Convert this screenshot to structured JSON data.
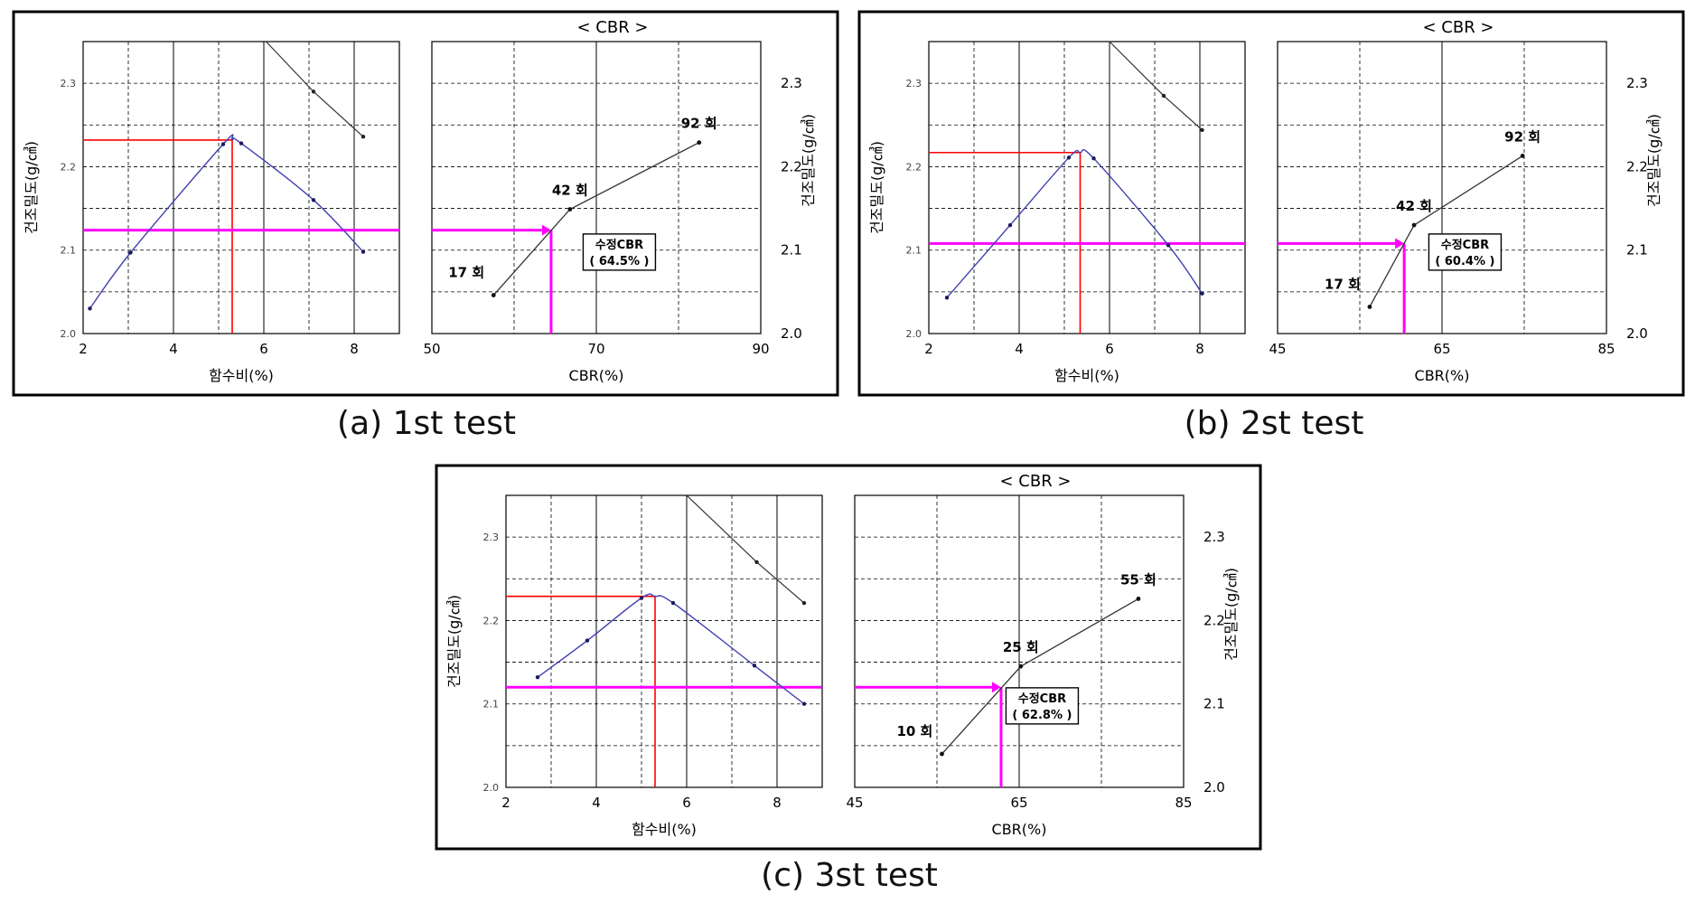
{
  "colors": {
    "compaction_curve": "#4040b0",
    "cbr_line": "#333333",
    "red_guide": "#ff0000",
    "magenta_guide": "#ff00ff",
    "grid": "#000000",
    "frame": "#000000"
  },
  "chart_data": [
    {
      "type": "line",
      "caption": "(a) 1st test",
      "title": "< CBR >",
      "compaction": {
        "xlabel": "함수비(%)",
        "ylabel": "건조밀도(g/㎤)",
        "xlim": [
          2,
          9
        ],
        "ylim": [
          2.0,
          2.35
        ],
        "xticks": [
          2,
          4,
          6,
          8
        ],
        "xtick_labels": [
          "2",
          "4",
          "6",
          "8"
        ],
        "yticks": [
          2.0,
          2.1,
          2.2,
          2.3
        ],
        "ytick_labels": [
          "2.0",
          "2.1",
          "2.2",
          "2.3"
        ],
        "curve": {
          "x": [
            2.15,
            3.05,
            5.1,
            5.5,
            7.1,
            8.2
          ],
          "y": [
            2.03,
            2.097,
            2.227,
            2.228,
            2.16,
            2.098
          ]
        },
        "zero_air_void": {
          "x": [
            6.05,
            7.1,
            8.2
          ],
          "y": [
            2.35,
            2.29,
            2.236
          ]
        },
        "omc": 5.3,
        "max_dry_density": 2.232,
        "target_density": 2.124
      },
      "cbr": {
        "xlabel": "CBR(%)",
        "ylabel": "건조밀도(g/㎤)",
        "xlim": [
          50,
          90
        ],
        "ylim": [
          2.0,
          2.35
        ],
        "xticks": [
          50,
          70,
          90
        ],
        "xtick_labels": [
          "50",
          "70",
          "90"
        ],
        "yticks": [
          2.0,
          2.1,
          2.2,
          2.3
        ],
        "ytick_labels": [
          "2.0",
          "2.1",
          "2.2",
          "2.3"
        ],
        "points": [
          {
            "x": 57.5,
            "y": 2.046,
            "label": "17 회"
          },
          {
            "x": 66.8,
            "y": 2.149,
            "label": "42 회"
          },
          {
            "x": 82.5,
            "y": 2.229,
            "label": "92 회"
          }
        ],
        "corrected_cbr": 64.5,
        "box_title": "수정CBR",
        "box_value": "( 64.5% )"
      }
    },
    {
      "type": "line",
      "caption": "(b) 2st test",
      "title": "< CBR >",
      "compaction": {
        "xlabel": "함수비(%)",
        "ylabel": "건조밀도(g/㎤)",
        "xlim": [
          2,
          9
        ],
        "ylim": [
          2.0,
          2.35
        ],
        "xticks": [
          2,
          4,
          6,
          8
        ],
        "xtick_labels": [
          "2",
          "4",
          "6",
          "8"
        ],
        "yticks": [
          2.0,
          2.1,
          2.2,
          2.3
        ],
        "ytick_labels": [
          "2.0",
          "2.1",
          "2.2",
          "2.3"
        ],
        "curve": {
          "x": [
            2.4,
            3.8,
            5.1,
            5.65,
            7.3,
            8.05
          ],
          "y": [
            2.043,
            2.13,
            2.211,
            2.21,
            2.106,
            2.048
          ]
        },
        "zero_air_void": {
          "x": [
            6.0,
            7.2,
            8.05
          ],
          "y": [
            2.35,
            2.285,
            2.244
          ]
        },
        "omc": 5.35,
        "max_dry_density": 2.217,
        "target_density": 2.108
      },
      "cbr": {
        "xlabel": "CBR(%)",
        "ylabel": "건조밀도(g/㎤)",
        "xlim": [
          45,
          85
        ],
        "ylim": [
          2.0,
          2.35
        ],
        "xticks": [
          45,
          65,
          85
        ],
        "xtick_labels": [
          "45",
          "65",
          "85"
        ],
        "yticks": [
          2.0,
          2.1,
          2.2,
          2.3
        ],
        "ytick_labels": [
          "2.0",
          "2.1",
          "2.2",
          "2.3"
        ],
        "points": [
          {
            "x": 56.2,
            "y": 2.032,
            "label": "17 회"
          },
          {
            "x": 61.6,
            "y": 2.13,
            "label": "42 회"
          },
          {
            "x": 74.8,
            "y": 2.213,
            "label": "92 회"
          }
        ],
        "corrected_cbr": 60.4,
        "box_title": "수정CBR",
        "box_value": "( 60.4% )"
      }
    },
    {
      "type": "line",
      "caption": "(c) 3st test",
      "title": "< CBR >",
      "compaction": {
        "xlabel": "함수비(%)",
        "ylabel": "건조밀도(g/㎤)",
        "xlim": [
          2,
          9
        ],
        "ylim": [
          2.0,
          2.35
        ],
        "xticks": [
          2,
          4,
          6,
          8
        ],
        "xtick_labels": [
          "2",
          "4",
          "6",
          "8"
        ],
        "yticks": [
          2.0,
          2.1,
          2.2,
          2.3
        ],
        "ytick_labels": [
          "2.0",
          "2.1",
          "2.2",
          "2.3"
        ],
        "curve": {
          "x": [
            2.7,
            3.8,
            5.0,
            5.7,
            7.5,
            8.6
          ],
          "y": [
            2.132,
            2.176,
            2.227,
            2.221,
            2.146,
            2.1
          ]
        },
        "zero_air_void": {
          "x": [
            6.0,
            7.55,
            8.6
          ],
          "y": [
            2.35,
            2.27,
            2.221
          ]
        },
        "omc": 5.3,
        "max_dry_density": 2.229,
        "target_density": 2.12
      },
      "cbr": {
        "xlabel": "CBR(%)",
        "ylabel": "건조밀도(g/㎤)",
        "xlim": [
          45,
          85
        ],
        "ylim": [
          2.0,
          2.35
        ],
        "xticks": [
          45,
          65,
          85
        ],
        "xtick_labels": [
          "45",
          "65",
          "85"
        ],
        "yticks": [
          2.0,
          2.1,
          2.2,
          2.3
        ],
        "ytick_labels": [
          "2.0",
          "2.1",
          "2.2",
          "2.3"
        ],
        "points": [
          {
            "x": 55.6,
            "y": 2.04,
            "label": "10 회"
          },
          {
            "x": 65.2,
            "y": 2.145,
            "label": "25 회"
          },
          {
            "x": 79.5,
            "y": 2.226,
            "label": "55 회"
          }
        ],
        "corrected_cbr": 62.8,
        "box_title": "수정CBR",
        "box_value": "( 62.8% )"
      }
    }
  ]
}
